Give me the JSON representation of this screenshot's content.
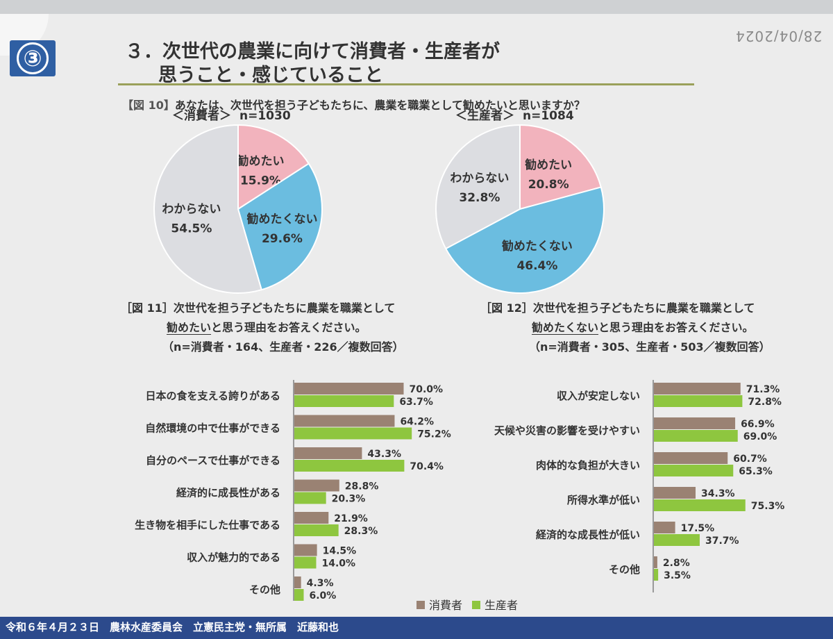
{
  "stamp": "28/04/2024",
  "badge": "③",
  "title": {
    "line1": "３．次世代の農業に向けて消費者・生産者が",
    "line2": "思うこと・感じていること"
  },
  "q10": {
    "fig": "【図 10】",
    "text": "あなたは、次世代を担う子どもたちに、農業を職業として勧めたいと思いますか？"
  },
  "legend": {
    "consumer": "消費者",
    "producer": "生産者"
  },
  "colors": {
    "pink": "#f2b3bd",
    "blue": "#6bbde0",
    "grey": "#dcdde1",
    "brown": "#9a8273",
    "green": "#8ec63f"
  },
  "q11": {
    "fig": "［図 11］",
    "line1": "次世代を担う子どもたちに農業を職業として",
    "underline": "勧めたい",
    "line2rest": "と思う理由をお答えください。",
    "note": "（n=消費者・164、生産者・226／複数回答）"
  },
  "q12": {
    "fig": "［図 12］",
    "line1": "次世代を担う子どもたちに農業を職業として",
    "underline": "勧めたくない",
    "line2rest": "と思う理由をお答えください。",
    "note": "（n=消費者・305、生産者・503／複数回答）"
  },
  "footer": "令和６年４月２３日　農林水産委員会　立憲民主党・無所属　近藤和也",
  "chart_data": [
    {
      "type": "pie",
      "title": "＜消費者＞",
      "n": "n=1030",
      "categories": [
        "勧めたい",
        "勧めたくない",
        "わからない"
      ],
      "values": [
        15.9,
        29.6,
        54.5
      ],
      "labels": [
        "15.9%",
        "29.6%",
        "54.5%"
      ]
    },
    {
      "type": "pie",
      "title": "＜生産者＞",
      "n": "n=1084",
      "categories": [
        "勧めたい",
        "勧めたくない",
        "わからない"
      ],
      "values": [
        20.8,
        46.4,
        32.8
      ],
      "labels": [
        "20.8%",
        "46.4%",
        "32.8%"
      ]
    },
    {
      "type": "bar",
      "categories": [
        "日本の食を支える誇りがある",
        "自然環境の中で仕事ができる",
        "自分のペースで仕事ができる",
        "経済的に成長性がある",
        "生き物を相手にした仕事である",
        "収入が魅力的である",
        "その他"
      ],
      "series": [
        {
          "name": "消費者",
          "values": [
            70.0,
            64.2,
            43.3,
            28.8,
            21.9,
            14.5,
            4.3
          ],
          "labels": [
            "70.0%",
            "64.2%",
            "43.3%",
            "28.8%",
            "21.9%",
            "14.5%",
            "4.3%"
          ]
        },
        {
          "name": "生産者",
          "values": [
            63.7,
            75.2,
            70.4,
            20.3,
            28.3,
            14.0,
            6.0
          ],
          "labels": [
            "63.7%",
            "75.2%",
            "70.4%",
            "20.3%",
            "28.3%",
            "14.0%",
            "6.0%"
          ]
        }
      ]
    },
    {
      "type": "bar",
      "categories": [
        "収入が安定しない",
        "天候や災害の影響を受けやすい",
        "肉体的な負担が大きい",
        "所得水準が低い",
        "経済的な成長性が低い",
        "その他"
      ],
      "series": [
        {
          "name": "消費者",
          "values": [
            71.3,
            66.9,
            60.7,
            34.3,
            17.5,
            2.8
          ],
          "labels": [
            "71.3%",
            "66.9%",
            "60.7%",
            "34.3%",
            "17.5%",
            "2.8%"
          ]
        },
        {
          "name": "生産者",
          "values": [
            72.8,
            69.0,
            65.3,
            75.3,
            37.7,
            3.5
          ],
          "labels": [
            "72.8%",
            "69.0%",
            "65.3%",
            "75.3%",
            "37.7%",
            "3.5%"
          ]
        }
      ]
    }
  ]
}
